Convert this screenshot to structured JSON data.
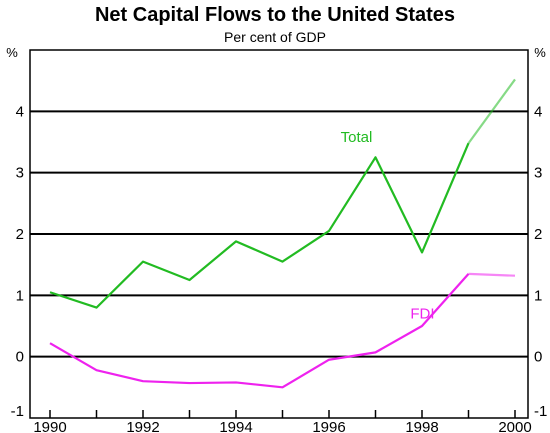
{
  "chart_data": {
    "type": "line",
    "title": "Net Capital Flows to the United States",
    "subtitle": "Per cent of GDP",
    "unit_left": "%",
    "unit_right": "%",
    "ylim": [
      -1,
      5
    ],
    "yticks": [
      -1,
      0,
      1,
      2,
      3,
      4
    ],
    "xlim": [
      1990,
      2000.5
    ],
    "xticks": [
      1990,
      1992,
      1994,
      1996,
      1998,
      2000
    ],
    "grid": true,
    "colors": {
      "Total": "#22bb22",
      "FDI": "#ee22ee"
    },
    "series": [
      {
        "name": "Total",
        "x": [
          1990,
          1991,
          1992,
          1993,
          1994,
          1995,
          1996,
          1997,
          1998,
          1999,
          2000
        ],
        "values": [
          1.05,
          0.8,
          1.55,
          1.25,
          1.88,
          1.55,
          2.05,
          3.25,
          1.7,
          3.48,
          4.52
        ]
      },
      {
        "name": "FDI",
        "x": [
          1990,
          1991,
          1992,
          1993,
          1994,
          1995,
          1996,
          1997,
          1998,
          1999,
          2000
        ],
        "values": [
          0.22,
          -0.22,
          -0.4,
          -0.43,
          -0.42,
          -0.5,
          -0.05,
          0.07,
          0.5,
          1.35,
          1.32
        ]
      }
    ],
    "projected_from_x": 1999
  }
}
